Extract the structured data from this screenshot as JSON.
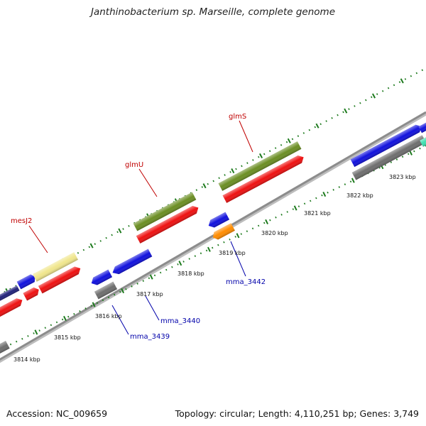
{
  "title": "Janthinobacterium sp. Marseille, complete genome",
  "footer": {
    "accession": "Accession: NC_009659",
    "summary": "Topology: circular; Length: 4,110,251 bp; Genes: 3,749"
  },
  "colors": {
    "backbone": "#8c8c8c",
    "tick": "#1d7a1d",
    "forward_label": "#c00000",
    "reverse_label": "#0000aa",
    "blue": "#1111dd",
    "red": "#ee1111",
    "olive": "#6b8e23",
    "pale_yellow": "#f0e68c",
    "gray": "#6e6e6e",
    "orange": "#ff8c00",
    "teal": "#40e0b0",
    "navy": "#22227a"
  },
  "scale_labels": [
    "3814 kbp",
    "3815 kbp",
    "3816 kbp",
    "3817 kbp",
    "3818 kbp",
    "3819 kbp",
    "3820 kbp",
    "3821 kbp",
    "3822 kbp",
    "3823 kbp"
  ],
  "gene_labels": {
    "forward": [
      "mesJ2",
      "glmU",
      "glmS"
    ],
    "reverse": [
      "mma_3439",
      "mma_3440",
      "mma_3442"
    ]
  }
}
